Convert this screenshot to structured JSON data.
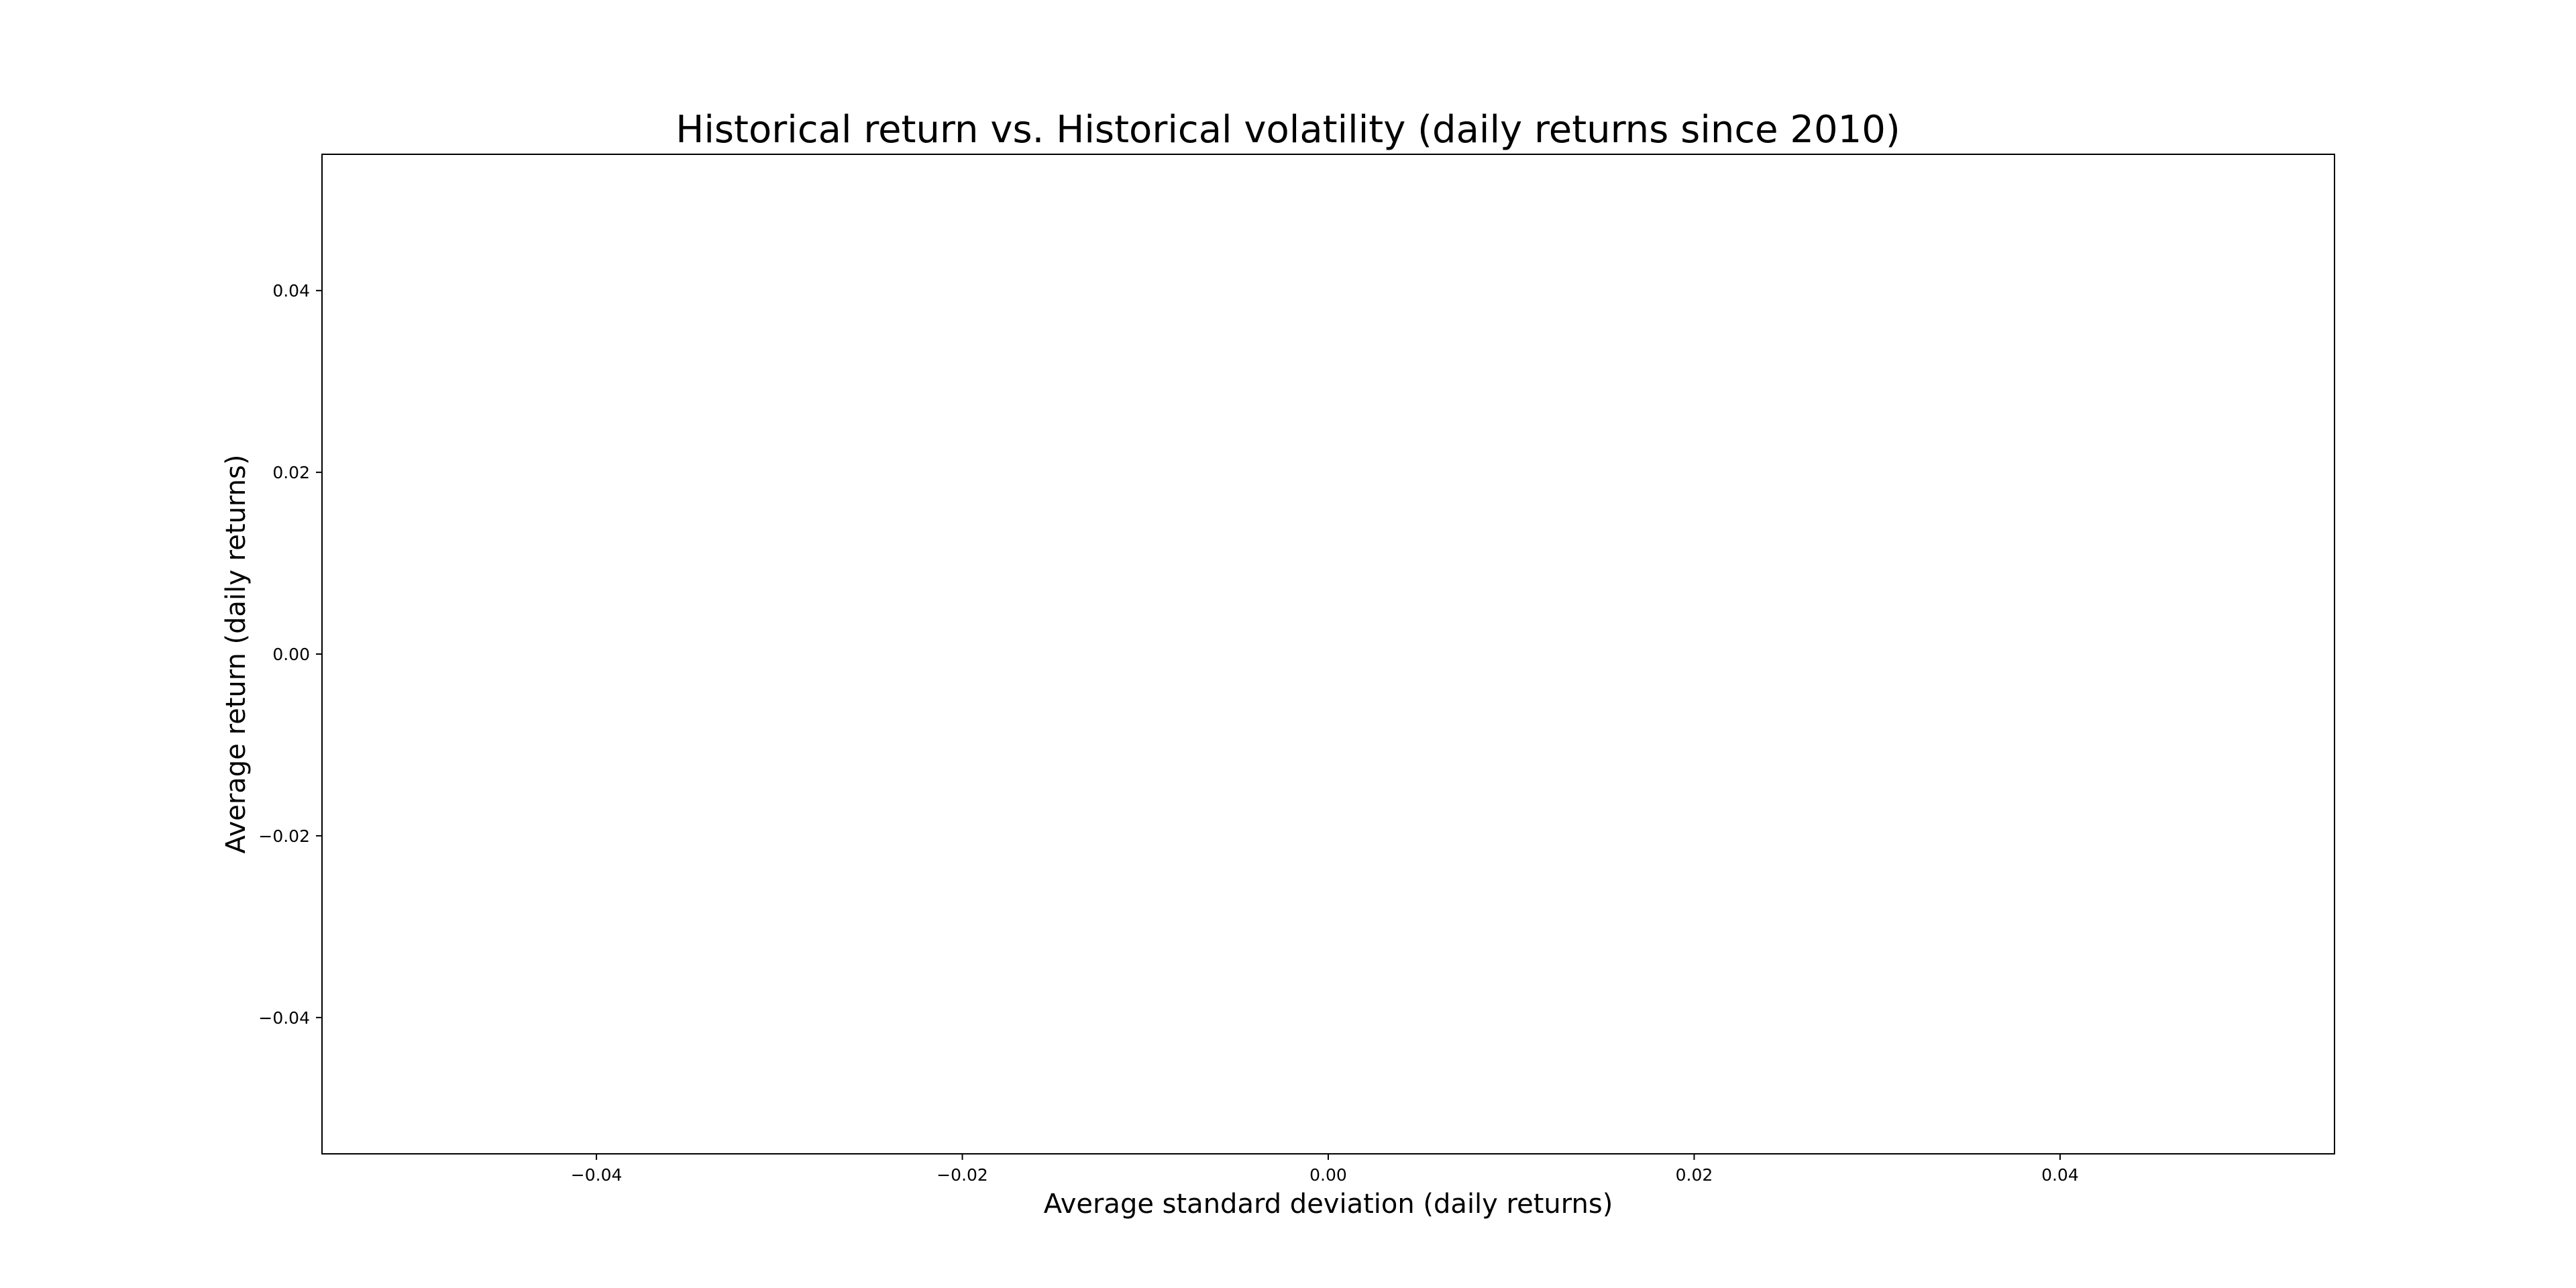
{
  "chart_data": {
    "type": "scatter",
    "title": "Historical return vs. Historical volatility (daily returns since 2010)",
    "xlabel": "Average standard deviation (daily returns)",
    "ylabel": "Average return (daily returns)",
    "xlim": [
      -0.055,
      0.055
    ],
    "ylim": [
      -0.055,
      0.055
    ],
    "x_ticks": [
      -0.04,
      -0.02,
      0.0,
      0.02,
      0.04
    ],
    "x_tick_labels": [
      "−0.04",
      "−0.02",
      "0.00",
      "0.02",
      "0.04"
    ],
    "y_ticks": [
      0.04,
      0.02,
      0.0,
      -0.02,
      -0.04
    ],
    "y_tick_labels": [
      "0.04",
      "0.02",
      "0.00",
      "−0.02",
      "−0.04"
    ],
    "grid": false,
    "series": [
      {
        "x": [],
        "y": []
      }
    ],
    "colors": {
      "axes": "#000000",
      "background": "#ffffff"
    }
  }
}
